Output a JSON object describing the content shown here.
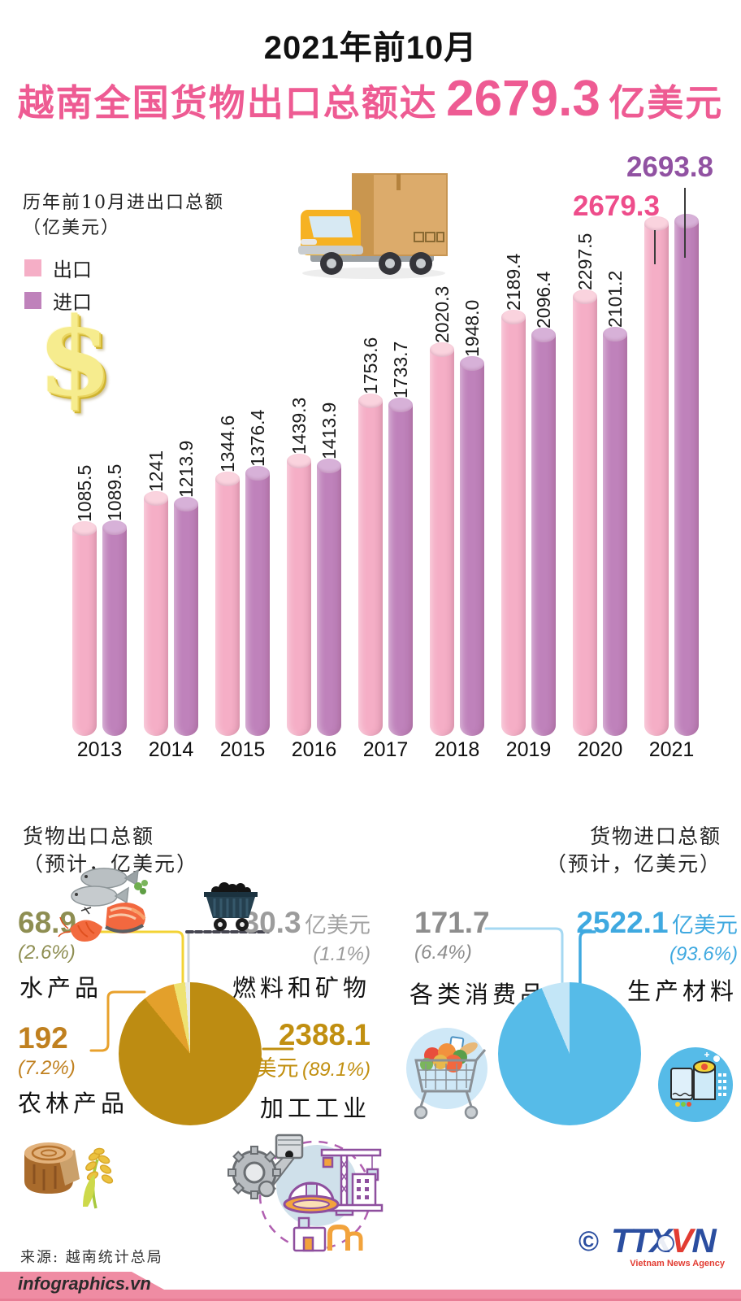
{
  "header": {
    "era": "2021年前10月",
    "title_prefix": "越南全国货物出口总额达",
    "title_value": "2679.3",
    "title_suffix": "亿美元",
    "accent_color": "#ee5b93"
  },
  "chart_data": {
    "type": "bar",
    "title": "历年前10月进出口总额",
    "unit_note": "（亿美元）",
    "categories": [
      "2013",
      "2014",
      "2015",
      "2016",
      "2017",
      "2018",
      "2019",
      "2020",
      "2021"
    ],
    "series": [
      {
        "name": "出口",
        "color": "#f5aec6",
        "cap_color": "#fad3de",
        "values": [
          1085.5,
          1241,
          1344.6,
          1439.3,
          1753.6,
          2020.3,
          2189.4,
          2297.5,
          2679.3
        ],
        "labels": [
          "1085.5",
          "1241",
          "1344.6",
          "1439.3",
          "1753.6",
          "2020.3",
          "2189.4",
          "2297.5",
          "2679.3"
        ]
      },
      {
        "name": "进口",
        "color": "#bf82bb",
        "cap_color": "#d7b1d8",
        "values": [
          1089.5,
          1213.9,
          1376.4,
          1413.9,
          1733.7,
          1948.0,
          2096.4,
          2101.2,
          2693.8
        ],
        "labels": [
          "1089.5",
          "1213.9",
          "1376.4",
          "1413.9",
          "1733.7",
          "1948.0",
          "2096.4",
          "2101.2",
          "2693.8"
        ]
      }
    ],
    "highlight": {
      "export_label": "2679.3",
      "export_color": "#ee4d8b",
      "import_label": "2693.8",
      "import_color": "#9152a2"
    },
    "ylim": [
      0,
      2800
    ],
    "grid": false,
    "legend_position": "top-left"
  },
  "export_pie": {
    "title_line1": "货物出口总额",
    "title_line2": "（预计，亿美元）",
    "slices": [
      {
        "label": "加工工业",
        "value": "2388.1",
        "unit": "亿美元",
        "pct_text": "(89.1%)",
        "pct": 89.1,
        "color": "#bd8c12"
      },
      {
        "label": "农林产品",
        "value": "192",
        "pct_text": "(7.2%)",
        "pct": 7.2,
        "color": "#e3a02b"
      },
      {
        "label": "水产品",
        "value": "68.9",
        "pct_text": "(2.6%)",
        "pct": 2.6,
        "color": "#eee271"
      },
      {
        "label": "燃料和矿物",
        "value": "30.3",
        "unit": "亿美元",
        "pct_text": "(1.1%)",
        "pct": 1.1,
        "color": "#e9ebe6"
      }
    ],
    "callout_colors": {
      "aquatic": "#8e8e52",
      "fuel": "#9c9c9c",
      "agro": "#c0801f",
      "processing": "#c18f10"
    }
  },
  "import_pie": {
    "title_line1": "货物进口总额",
    "title_line2": "（预计，亿美元）",
    "slices": [
      {
        "label": "生产材料",
        "value": "2522.1",
        "unit": "亿美元",
        "pct_text": "(93.6%)",
        "pct": 93.6,
        "color": "#56bbe8"
      },
      {
        "label": "各类消费品",
        "value": "171.7",
        "pct_text": "(6.4%)",
        "pct": 6.4,
        "color": "#c3e6f7"
      }
    ],
    "callout_colors": {
      "consumer": "#8d8d8d",
      "materials": "#3fa9e0"
    }
  },
  "footer": {
    "source": "来源: 越南统计总局",
    "brand": "infographics.vn",
    "copyright": "©",
    "logo_t": "TTX",
    "logo_v": "V",
    "logo_n": "N",
    "agency": "Vietnam News Agency"
  }
}
